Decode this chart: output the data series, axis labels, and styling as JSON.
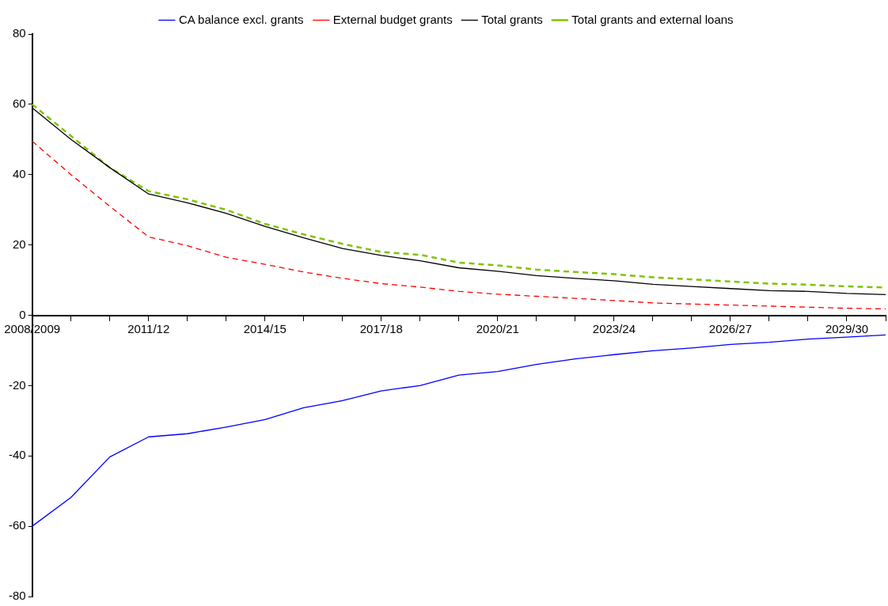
{
  "chart_data": {
    "type": "line",
    "categories": [
      "2008/2009",
      null,
      null,
      "2011/12",
      null,
      null,
      "2014/15",
      null,
      null,
      "2017/18",
      null,
      null,
      "2020/21",
      null,
      null,
      "2023/24",
      null,
      null,
      "2026/27",
      null,
      null,
      "2029/30",
      null
    ],
    "series": [
      {
        "name": "CA balance excl. grants",
        "color": "#0000ff",
        "line_style": "solid",
        "values": [
          -60,
          -51.8,
          -40.3,
          -34.6,
          -33.7,
          -31.8,
          -29.7,
          -26.3,
          -24.3,
          -21.5,
          -20,
          -17,
          -16,
          -14,
          -12.4,
          -11.2,
          -10.1,
          -9.3,
          -8.3,
          -7.7,
          -6.8,
          -6.2,
          -5.6
        ]
      },
      {
        "name": "External budget grants",
        "color": "#ff0000",
        "line_style": "dashed",
        "values": [
          49.5,
          40,
          31,
          22.3,
          19.8,
          16.5,
          14.5,
          12.3,
          10.5,
          9,
          8,
          6.8,
          6,
          5.4,
          4.8,
          4.2,
          3.5,
          3.2,
          2.9,
          2.6,
          2.3,
          2,
          1.8
        ]
      },
      {
        "name": "Total grants",
        "color": "#000000",
        "line_style": "solid",
        "values": [
          59,
          50,
          42,
          34.5,
          32,
          29,
          25.3,
          22,
          19,
          17,
          15.5,
          13.5,
          12.5,
          11.3,
          10.5,
          9.8,
          8.8,
          8.2,
          7.6,
          7,
          6.8,
          6.2,
          5.9
        ]
      },
      {
        "name": "Total grants and external loans",
        "color": "#7fc400",
        "line_style": "dashed",
        "values": [
          60,
          51,
          42,
          35.3,
          33,
          30,
          26,
          23,
          20.3,
          18,
          17.2,
          15,
          14.2,
          13,
          12.3,
          11.7,
          10.8,
          10.2,
          9.6,
          9,
          8.7,
          8.2,
          7.9
        ]
      }
    ],
    "ylim": [
      -80,
      80
    ],
    "yticks": [
      -80,
      -60,
      -40,
      -20,
      0,
      20,
      40,
      60,
      80
    ],
    "grid": false,
    "legend": "top",
    "marker": "none"
  }
}
